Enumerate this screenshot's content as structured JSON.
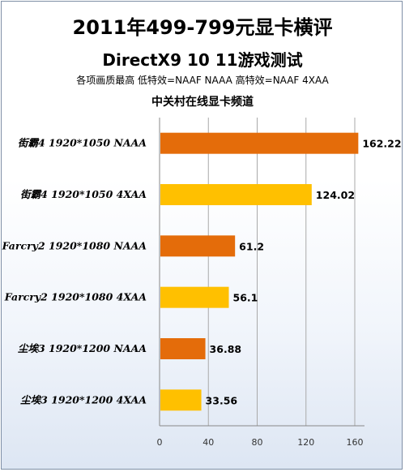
{
  "chart_data": {
    "type": "bar",
    "orientation": "horizontal",
    "title": "2011年499-799元显卡横评",
    "subtitle": "DirectX9 10 11游戏测试",
    "note": "各项画质最高 低特效=NAAF NAAA 高特效=NAAF 4XAA",
    "source": "中关村在线显卡频道",
    "categories": [
      "街霸4 1920*1050 NAAA",
      "街霸4 1920*1050 4XAA",
      "Farcry2 1920*1080 NAAA",
      "Farcry2 1920*1080 4XAA",
      "尘埃3 1920*1200 NAAA",
      "尘埃3 1920*1200 4XAA"
    ],
    "values": [
      162.22,
      124.02,
      61.2,
      56.1,
      36.88,
      33.56
    ],
    "value_labels": [
      "162.22",
      "124.02",
      "61.2",
      "56.1",
      "36.88",
      "33.56"
    ],
    "bar_colors": [
      "#e46c0a",
      "#ffc000",
      "#e46c0a",
      "#ffc000",
      "#e46c0a",
      "#ffc000"
    ],
    "xlim": [
      0,
      160
    ],
    "xticks": [
      "0",
      "40",
      "80",
      "120",
      "160"
    ],
    "grid": true,
    "xlabel": "",
    "ylabel": ""
  }
}
